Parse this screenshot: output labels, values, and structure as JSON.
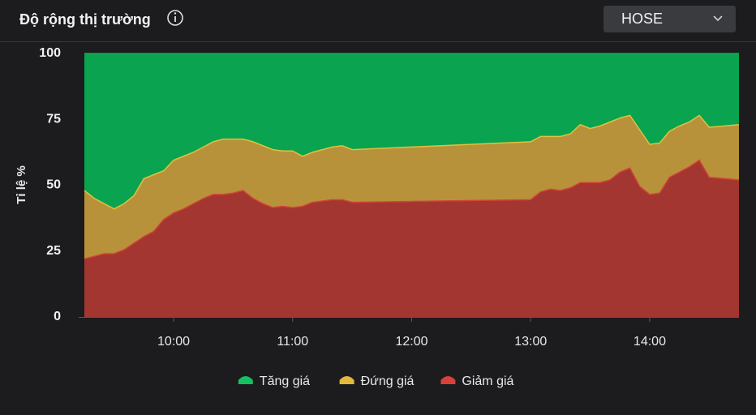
{
  "header": {
    "title": "Độ rộng thị trường",
    "dropdown": "HOSE"
  },
  "chart_data": {
    "type": "stacked_area",
    "y_label": "Tỉ lệ %",
    "x": [
      "09:15",
      "09:20",
      "09:25",
      "09:30",
      "09:35",
      "09:40",
      "09:45",
      "09:50",
      "09:55",
      "10:00",
      "10:05",
      "10:10",
      "10:15",
      "10:20",
      "10:25",
      "10:30",
      "10:35",
      "10:40",
      "10:45",
      "10:50",
      "10:55",
      "11:00",
      "11:05",
      "11:10",
      "11:15",
      "11:20",
      "11:25",
      "11:30",
      "13:00",
      "13:05",
      "13:10",
      "13:15",
      "13:20",
      "13:25",
      "13:30",
      "13:35",
      "13:40",
      "13:45",
      "13:50",
      "13:55",
      "14:00",
      "14:05",
      "14:10",
      "14:15",
      "14:20",
      "14:25",
      "14:30",
      "14:45"
    ],
    "xlim": [
      "09:15",
      "14:45"
    ],
    "xticks": [
      "10:00",
      "11:00",
      "12:00",
      "13:00",
      "14:00"
    ],
    "ylim": [
      0,
      100
    ],
    "yticks": [
      0,
      25,
      50,
      75,
      100
    ],
    "grid": false,
    "legend": "bottom",
    "series": [
      {
        "name": "Tăng giá",
        "color": "#0aa34f",
        "legend_color": "#16c060",
        "values": [
          52,
          55,
          57,
          59,
          57,
          54,
          47.5,
          46,
          44.5,
          40.5,
          39,
          37.5,
          35.5,
          33.5,
          32.5,
          32.5,
          32.5,
          33.5,
          35,
          36.5,
          37,
          37,
          39,
          37.5,
          36.5,
          35.5,
          35,
          36.5,
          33.5,
          31.5,
          31.5,
          31.5,
          30.5,
          27,
          28.5,
          27.5,
          26,
          24.5,
          23.5,
          29,
          34.5,
          34,
          29.5,
          27.5,
          26,
          23.5,
          28,
          27
        ]
      },
      {
        "name": "Đứng giá",
        "color": "#b8923a",
        "legend_color": "#e2b93b",
        "values": [
          26,
          22,
          19,
          17,
          17.5,
          18,
          22,
          21.5,
          18.5,
          20,
          20,
          19.5,
          19.5,
          20,
          21,
          20.5,
          19.5,
          21.5,
          22,
          22,
          21,
          21.5,
          19,
          19,
          19.5,
          20,
          20.5,
          20,
          22,
          21,
          20,
          20.5,
          20.5,
          22,
          20.5,
          21.5,
          22,
          20.5,
          20,
          21.5,
          19,
          19,
          17.5,
          17.5,
          17,
          17,
          19,
          21
        ]
      },
      {
        "name": "Giảm giá",
        "color": "#a33630",
        "legend_color": "#d9413b",
        "values": [
          22,
          23,
          24,
          24,
          25.5,
          28,
          30.5,
          32.5,
          37,
          39.5,
          41,
          43,
          45,
          46.5,
          46.5,
          47,
          48,
          45,
          43,
          41.5,
          42,
          41.5,
          42,
          43.5,
          44,
          44.5,
          44.5,
          43.5,
          44.5,
          47.5,
          48.5,
          48,
          49,
          51,
          51,
          51,
          52,
          55,
          56.5,
          49.5,
          46.5,
          47,
          53,
          55,
          57,
          59.5,
          53,
          52
        ]
      }
    ]
  }
}
